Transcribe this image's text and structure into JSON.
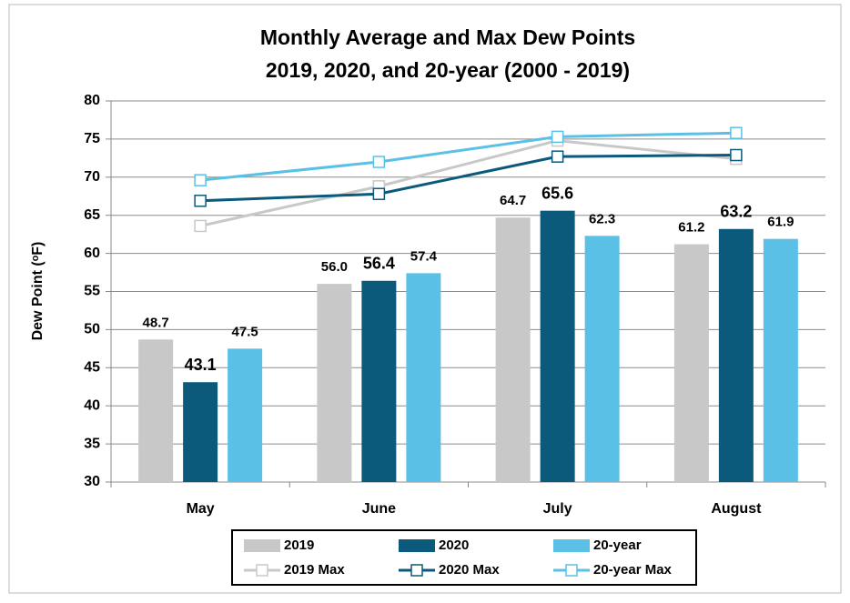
{
  "chart_data": {
    "type": "bar",
    "title": [
      "Monthly Average and Max Dew Points",
      "2019, 2020, and 20-year (2000 - 2019)"
    ],
    "y_label": "Dew Point (ᵒF)",
    "categories": [
      "May",
      "June",
      "July",
      "August"
    ],
    "ylim": [
      30,
      80
    ],
    "yticks": [
      30,
      35,
      40,
      45,
      50,
      55,
      60,
      65,
      70,
      75,
      80
    ],
    "grid": true,
    "legend": "bottom",
    "series": [
      {
        "name": "2019",
        "type": "bar",
        "color": "#c8c8c8",
        "values": [
          48.7,
          56.0,
          64.7,
          61.2
        ],
        "value_labels": [
          "48.7",
          "56.0",
          "64.7",
          "61.2"
        ]
      },
      {
        "name": "2020",
        "type": "bar",
        "color": "#0b5a7c",
        "values": [
          43.1,
          56.4,
          65.6,
          63.2
        ],
        "value_labels": [
          "43.1",
          "56.4",
          "65.6",
          "63.2"
        ]
      },
      {
        "name": "20-year",
        "type": "bar",
        "color": "#5bc0e6",
        "values": [
          47.5,
          57.4,
          62.3,
          61.9
        ],
        "value_labels": [
          "47.5",
          "57.4",
          "62.3",
          "61.9"
        ]
      },
      {
        "name": "2019 Max",
        "type": "line",
        "color": "#c8c8c8",
        "values": [
          63.6,
          68.8,
          74.8,
          72.4
        ]
      },
      {
        "name": "2020 Max",
        "type": "line",
        "color": "#0b5a7c",
        "values": [
          66.9,
          67.8,
          72.7,
          72.9
        ]
      },
      {
        "name": "20-year Max",
        "type": "line",
        "color": "#5bc0e6",
        "values": [
          69.6,
          72.0,
          75.3,
          75.8
        ]
      }
    ]
  }
}
